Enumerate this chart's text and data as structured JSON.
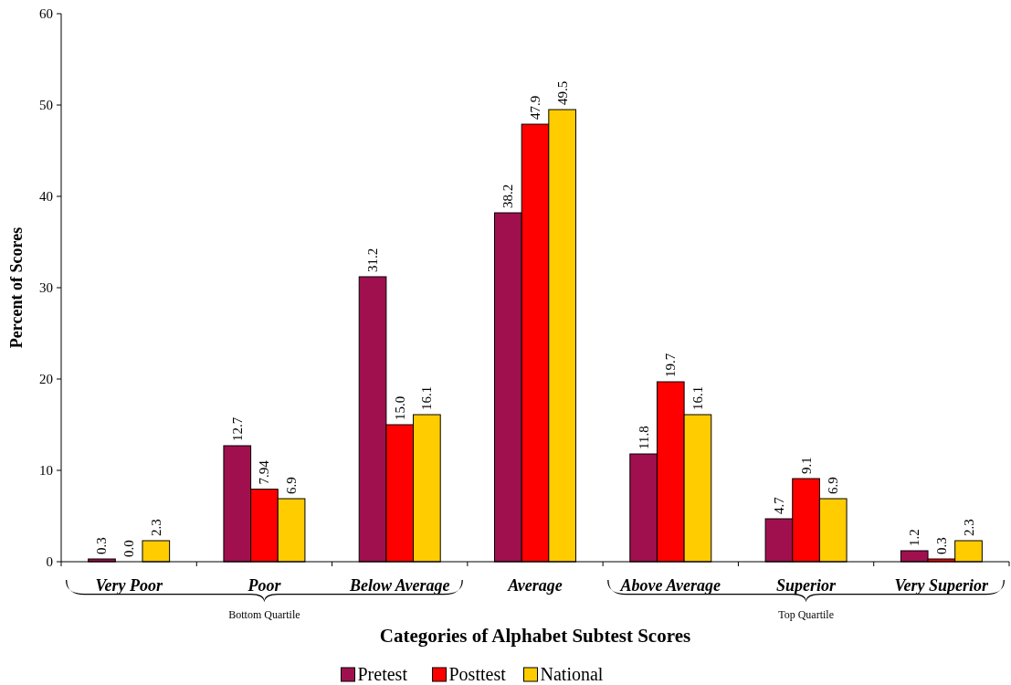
{
  "chart_data": {
    "type": "bar",
    "xlabel": "Categories of Alphabet Subtest Scores",
    "ylabel": "Percent of Scores",
    "categories": [
      "Very Poor",
      "Poor",
      "Below Average",
      "Average",
      "Above Average",
      "Superior",
      "Very Superior"
    ],
    "series": [
      {
        "name": "Pretest",
        "color": "#a0104e",
        "values": [
          0.3,
          12.7,
          31.2,
          38.2,
          11.8,
          4.7,
          1.2
        ],
        "value_labels": [
          "0.3",
          "12.7",
          "31.2",
          "38.2",
          "11.8",
          "4.7",
          "1.2"
        ]
      },
      {
        "name": "Posttest",
        "color": "#ff0000",
        "values": [
          0.0,
          7.94,
          15.0,
          47.9,
          19.7,
          9.1,
          0.3
        ],
        "value_labels": [
          "0.0",
          "7.94",
          "15.0",
          "47.9",
          "19.7",
          "9.1",
          "0.3"
        ]
      },
      {
        "name": "National",
        "color": "#ffcc00",
        "values": [
          2.3,
          6.9,
          16.1,
          49.5,
          16.1,
          6.9,
          2.3
        ],
        "value_labels": [
          "2.3",
          "6.9",
          "16.1",
          "49.5",
          "16.1",
          "6.9",
          "2.3"
        ]
      }
    ],
    "ylim": [
      0,
      60
    ],
    "yticks": [
      0,
      10,
      20,
      30,
      40,
      50,
      60
    ],
    "grid": false,
    "legend": "bottom",
    "annotations": [
      "Bottom Quartile",
      "Top Quartile"
    ]
  }
}
